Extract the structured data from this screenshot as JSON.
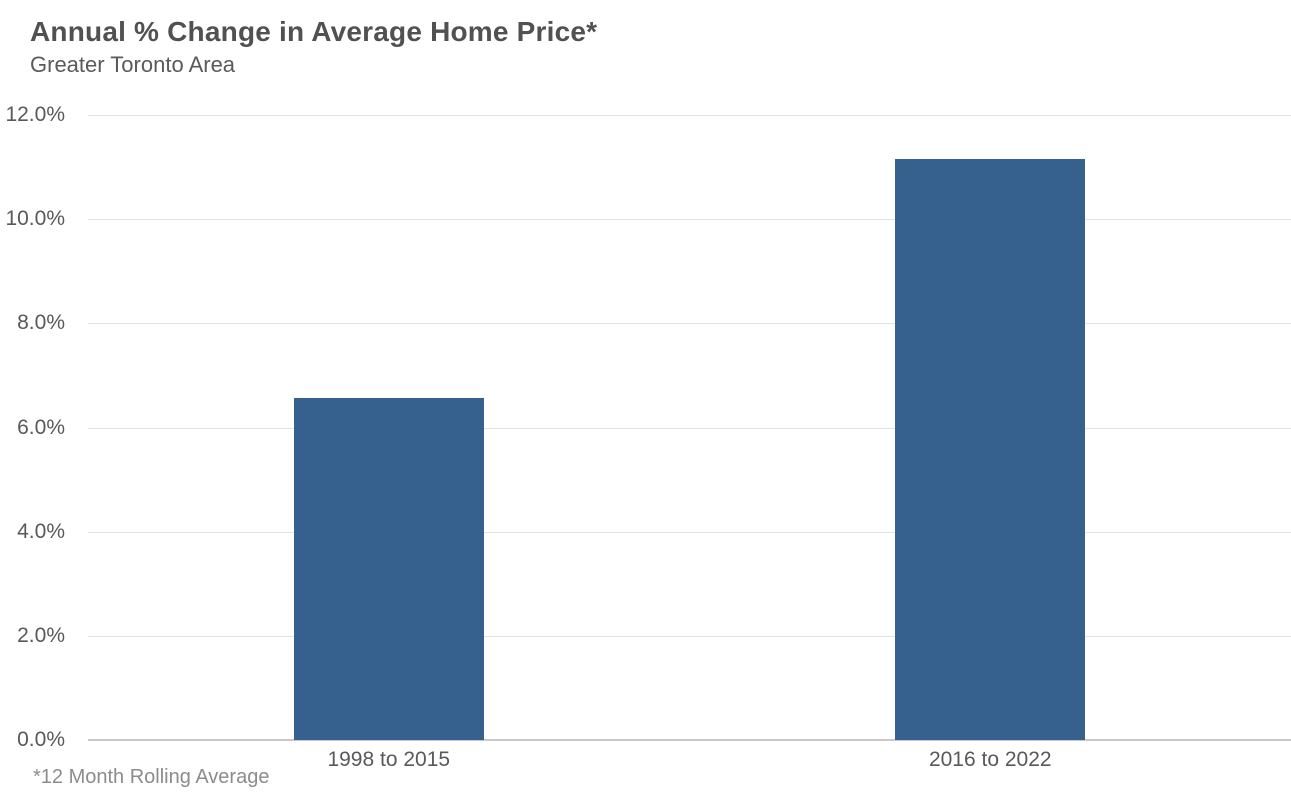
{
  "page": {
    "title": "Annual % Change in Average Home Price*",
    "subtitle": "Greater Toronto Area",
    "footnote": "*12 Month Rolling Average"
  },
  "colors": {
    "background": "#ffffff",
    "bar": "#36618f",
    "title_text": "#515151",
    "subtitle_text": "#5a5a5a",
    "axis_text": "#595959",
    "footnote_text": "#8c8c8c",
    "gridline": "#e2e2e2",
    "axis_line": "#c9c9c9"
  },
  "chart_data": {
    "type": "bar",
    "title": "Annual % Change in Average Home Price*",
    "subtitle": "Greater Toronto Area",
    "categories": [
      "1998 to 2015",
      "2016 to 2022"
    ],
    "values": [
      6.57,
      11.15
    ],
    "unit": "%",
    "xlabel": "",
    "ylabel": "",
    "ylim": [
      0,
      12
    ],
    "ytick_step": 2,
    "ytick_labels": [
      "0.0%",
      "2.0%",
      "4.0%",
      "6.0%",
      "8.0%",
      "10.0%",
      "12.0%"
    ],
    "grid": true,
    "legend_position": "none",
    "bar_color": "#36618f",
    "footnote": "*12 Month Rolling Average"
  }
}
